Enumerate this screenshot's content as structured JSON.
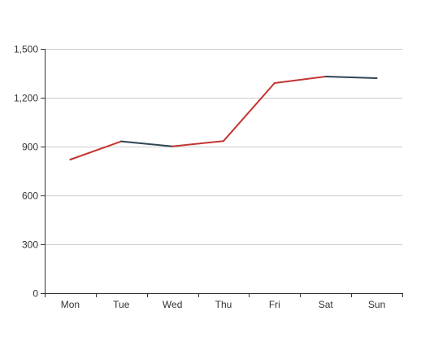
{
  "chart_data": {
    "type": "line",
    "categories": [
      "Mon",
      "Tue",
      "Wed",
      "Thu",
      "Fri",
      "Sat",
      "Sun"
    ],
    "series": [
      {
        "values": [
          820,
          932,
          901,
          934,
          1290,
          1330,
          1320
        ]
      }
    ],
    "y_ticks": [
      "0",
      "300",
      "600",
      "900",
      "1,200",
      "1,500"
    ],
    "ylim": [
      0,
      1500
    ],
    "grid": true,
    "legend": "none",
    "segment_colors": {
      "up": "#c23531",
      "down": "#2f4554"
    }
  }
}
